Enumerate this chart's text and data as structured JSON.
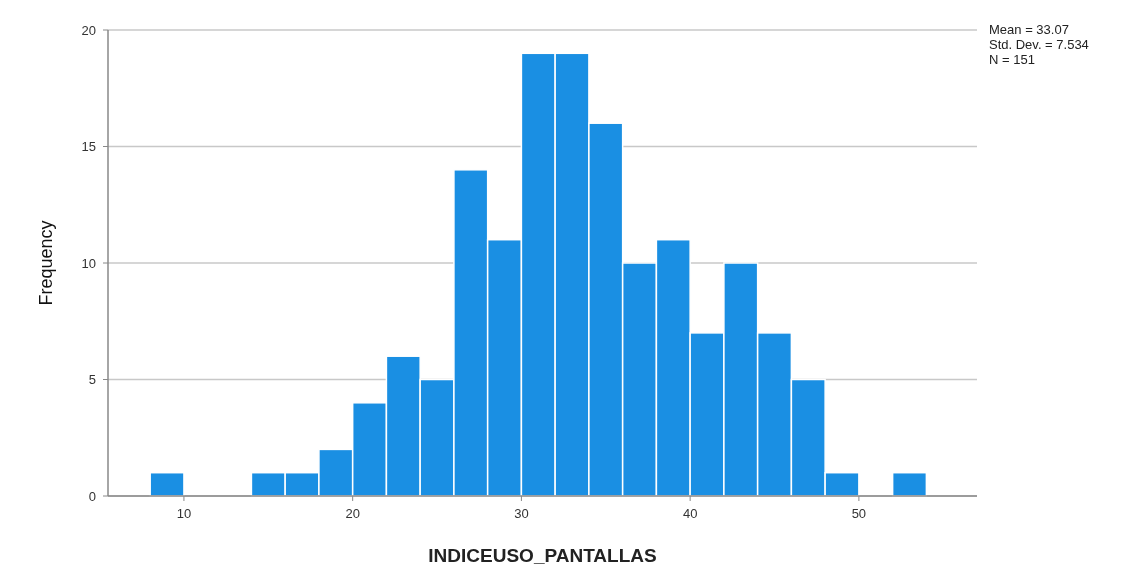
{
  "chart_data": {
    "type": "histogram",
    "xlabel": "INDICEUSO_PANTALLAS",
    "ylabel": "Frequency",
    "bins": [
      8,
      10,
      12,
      14,
      16,
      18,
      20,
      22,
      24,
      26,
      28,
      30,
      32,
      34,
      36,
      38,
      40,
      42,
      44,
      46,
      48,
      50,
      52,
      54
    ],
    "values": [
      1,
      0,
      0,
      1,
      1,
      2,
      4,
      6,
      5,
      14,
      11,
      19,
      19,
      16,
      10,
      11,
      7,
      10,
      7,
      5,
      1,
      0,
      1
    ],
    "color": "#1a8fe3",
    "xlim": [
      5.5,
      57
    ],
    "xticks": [
      10,
      20,
      30,
      40,
      50
    ],
    "ylim": [
      0,
      20
    ],
    "yticks": [
      0,
      5,
      10,
      15,
      20
    ],
    "grid": "y",
    "annotations": [
      "Mean = 33.07",
      "Std. Dev. = 7.534",
      "N = 151"
    ]
  }
}
